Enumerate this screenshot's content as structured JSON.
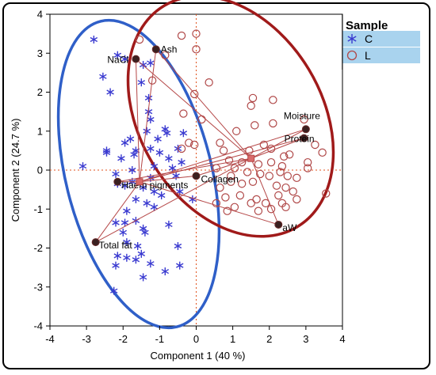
{
  "chart_data": {
    "type": "scatter",
    "title": "",
    "xlabel": "Component 1 (40 %)",
    "ylabel": "Component 2  (24.7 %)",
    "xlim": [
      -4,
      4
    ],
    "ylim": [
      -4,
      4
    ],
    "xticks": [
      "-4",
      "-3",
      "-2",
      "-1",
      "0",
      "1",
      "2",
      "3",
      "4"
    ],
    "yticks": [
      "4",
      "3",
      "2",
      "1",
      "0",
      "-1",
      "-2",
      "-3",
      "-4"
    ],
    "grid": false,
    "reference_lines": "dotted lines at x = 0 and y = 0",
    "legend": {
      "title": "Sample",
      "placement": "top-right outside plot",
      "entries": [
        {
          "label": "C",
          "marker": "asterisk",
          "color": "#3a3ad0",
          "highlighted": true
        },
        {
          "label": "L",
          "marker": "open-circle",
          "color": "#b04848",
          "highlighted": true
        }
      ]
    },
    "series": [
      {
        "name": "C",
        "color": "#3a3ad0",
        "marker": "asterisk",
        "points": [
          [
            -2.8,
            3.35
          ],
          [
            -2.55,
            2.4
          ],
          [
            -2.15,
            2.95
          ],
          [
            -1.95,
            2.85
          ],
          [
            -1.45,
            2.7
          ],
          [
            -1.25,
            2.75
          ],
          [
            -2.35,
            2.0
          ],
          [
            -1.5,
            2.25
          ],
          [
            -1.3,
            1.85
          ],
          [
            -1.3,
            1.5
          ],
          [
            -1.25,
            1.3
          ],
          [
            -0.85,
            1.05
          ],
          [
            -0.8,
            0.95
          ],
          [
            -1.35,
            1.0
          ],
          [
            -1.05,
            0.8
          ],
          [
            -1.8,
            0.8
          ],
          [
            -2.45,
            0.5
          ],
          [
            -2.45,
            0.45
          ],
          [
            -1.95,
            0.7
          ],
          [
            -1.65,
            0.5
          ],
          [
            -1.25,
            0.55
          ],
          [
            -1.0,
            0.45
          ],
          [
            -1.7,
            0.4
          ],
          [
            -0.75,
            0.3
          ],
          [
            -0.5,
            0.55
          ],
          [
            -0.35,
            0.95
          ],
          [
            -0.4,
            0.2
          ],
          [
            -2.05,
            0.3
          ],
          [
            -1.75,
            0.0
          ],
          [
            -1.15,
            0.1
          ],
          [
            -0.65,
            0.05
          ],
          [
            -3.1,
            0.1
          ],
          [
            -2.2,
            -0.1
          ],
          [
            -1.25,
            -0.2
          ],
          [
            -0.55,
            -0.15
          ],
          [
            -2.15,
            -0.35
          ],
          [
            -1.95,
            -0.4
          ],
          [
            -1.75,
            -0.3
          ],
          [
            -1.45,
            -0.45
          ],
          [
            -1.15,
            -0.55
          ],
          [
            -0.95,
            -0.65
          ],
          [
            -0.45,
            -0.55
          ],
          [
            -0.1,
            -0.75
          ],
          [
            -1.65,
            -0.75
          ],
          [
            -1.35,
            -0.85
          ],
          [
            -1.15,
            -0.95
          ],
          [
            -1.9,
            -1.05
          ],
          [
            -2.2,
            -1.35
          ],
          [
            -1.95,
            -1.35
          ],
          [
            -1.65,
            -1.3
          ],
          [
            -1.45,
            -1.5
          ],
          [
            -2.0,
            -1.6
          ],
          [
            -1.4,
            -1.6
          ],
          [
            -0.75,
            -1.4
          ],
          [
            -1.9,
            -1.85
          ],
          [
            -1.6,
            -1.95
          ],
          [
            -0.5,
            -1.95
          ],
          [
            -2.15,
            -2.2
          ],
          [
            -1.9,
            -2.25
          ],
          [
            -1.65,
            -2.3
          ],
          [
            -1.5,
            -2.15
          ],
          [
            -1.25,
            -2.4
          ],
          [
            -2.2,
            -2.45
          ],
          [
            -0.85,
            -2.6
          ],
          [
            -0.45,
            -2.45
          ],
          [
            -2.25,
            -3.1
          ],
          [
            -1.45,
            -2.75
          ]
        ]
      },
      {
        "name": "L",
        "color": "#b04848",
        "marker": "open-circle",
        "points": [
          [
            -1.55,
            3.35
          ],
          [
            -0.4,
            3.45
          ],
          [
            0.0,
            3.5
          ],
          [
            0.0,
            3.1
          ],
          [
            -0.85,
            2.95
          ],
          [
            -1.2,
            2.3
          ],
          [
            0.35,
            2.25
          ],
          [
            -0.05,
            1.95
          ],
          [
            1.55,
            1.85
          ],
          [
            -0.35,
            1.45
          ],
          [
            0.15,
            1.3
          ],
          [
            1.5,
            1.65
          ],
          [
            2.1,
            1.8
          ],
          [
            2.95,
            1.3
          ],
          [
            1.6,
            1.15
          ],
          [
            2.1,
            1.2
          ],
          [
            1.85,
            0.65
          ],
          [
            2.05,
            0.55
          ],
          [
            -0.4,
            0.55
          ],
          [
            1.45,
            0.5
          ],
          [
            2.4,
            0.35
          ],
          [
            2.55,
            0.4
          ],
          [
            3.05,
            0.2
          ],
          [
            3.45,
            0.45
          ],
          [
            2.35,
            0.1
          ],
          [
            0.65,
            0.7
          ],
          [
            -0.05,
            0.65
          ],
          [
            -0.2,
            0.7
          ],
          [
            0.75,
            0.5
          ],
          [
            0.9,
            0.25
          ],
          [
            1.25,
            0.2
          ],
          [
            1.05,
            0.05
          ],
          [
            1.4,
            -0.05
          ],
          [
            1.7,
            0.15
          ],
          [
            2.05,
            0.2
          ],
          [
            0.55,
            0.05
          ],
          [
            0.95,
            -0.15
          ],
          [
            1.25,
            -0.35
          ],
          [
            1.55,
            -0.3
          ],
          [
            1.75,
            -0.1
          ],
          [
            2.0,
            -0.15
          ],
          [
            2.3,
            -0.05
          ],
          [
            2.5,
            -0.15
          ],
          [
            2.2,
            -0.4
          ],
          [
            2.45,
            -0.45
          ],
          [
            2.75,
            -0.2
          ],
          [
            3.05,
            0.05
          ],
          [
            3.25,
            0.65
          ],
          [
            3.55,
            -0.6
          ],
          [
            2.65,
            -0.55
          ],
          [
            2.25,
            -0.65
          ],
          [
            2.35,
            -0.85
          ],
          [
            2.45,
            -0.95
          ],
          [
            2.75,
            -0.75
          ],
          [
            1.2,
            -0.65
          ],
          [
            0.8,
            -0.7
          ],
          [
            0.65,
            -0.45
          ],
          [
            1.05,
            -0.95
          ],
          [
            1.65,
            -0.75
          ],
          [
            1.9,
            -0.85
          ],
          [
            0.85,
            -1.05
          ],
          [
            1.7,
            -1.05
          ],
          [
            2.05,
            -1.0
          ],
          [
            0.55,
            -0.85
          ],
          [
            1.5,
            -0.85
          ],
          [
            0.95,
            -0.3
          ],
          [
            1.1,
            1.0
          ]
        ]
      }
    ],
    "loading_vectors": [
      {
        "label": "NaCl",
        "x": -1.65,
        "y": 2.85
      },
      {
        "label": "Ash",
        "x": -1.1,
        "y": 3.1
      },
      {
        "label": "Moisture",
        "x": 3.0,
        "y": 1.05
      },
      {
        "label": "Protein",
        "x": 2.95,
        "y": 0.82
      },
      {
        "label": "Collagen",
        "x": 0.0,
        "y": -0.15
      },
      {
        "label": "Haem pigments",
        "x": -2.15,
        "y": -0.3
      },
      {
        "label": "Total fat",
        "x": -2.75,
        "y": -1.85
      },
      {
        "label": "aW",
        "x": 2.25,
        "y": -1.4
      }
    ],
    "centroids": [
      {
        "series": "C",
        "x": -1.55,
        "y": -0.3
      },
      {
        "series": "L",
        "x": 1.5,
        "y": 0.3
      }
    ],
    "ellipses": [
      {
        "series": "C",
        "color": "#2f5fc8"
      },
      {
        "series": "L",
        "color": "#a01a1a"
      }
    ]
  }
}
